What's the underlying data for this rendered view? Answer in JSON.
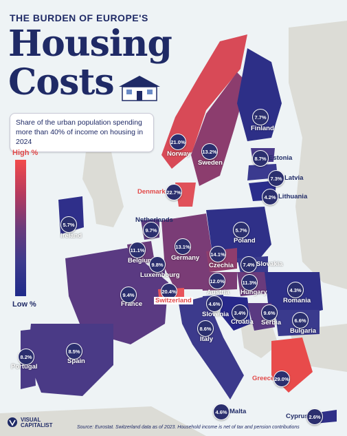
{
  "header": {
    "kicker": "THE BURDEN OF EUROPE'S",
    "title_line1": "Housing",
    "title_line2": "Costs"
  },
  "subtitle": "Share of the urban population spending more than 40% of income on housing in 2024",
  "legend": {
    "high": "High %",
    "low": "Low %",
    "colors": [
      "#f24b4b",
      "#b63a5e",
      "#6b3b7c",
      "#3c3a8c",
      "#1f2a8a"
    ]
  },
  "countries": [
    {
      "name": "Norway",
      "value": "21.0%"
    },
    {
      "name": "Sweden",
      "value": "13.2%"
    },
    {
      "name": "Finland",
      "value": "7.7%"
    },
    {
      "name": "Estonia",
      "value": "8.7%"
    },
    {
      "name": "Latvia",
      "value": "7.3%"
    },
    {
      "name": "Lithuania",
      "value": "4.2%"
    },
    {
      "name": "Denmark",
      "value": "22.7%"
    },
    {
      "name": "Ireland",
      "value": "5.7%"
    },
    {
      "name": "Netherlands",
      "value": "9.7%"
    },
    {
      "name": "Poland",
      "value": "5.7%"
    },
    {
      "name": "Belgium",
      "value": "11.1%"
    },
    {
      "name": "Germany",
      "value": "13.1%"
    },
    {
      "name": "Czechia",
      "value": "14.1%"
    },
    {
      "name": "Luxembourg",
      "value": "9.8%"
    },
    {
      "name": "Slovakia",
      "value": "7.4%"
    },
    {
      "name": "France",
      "value": "9.4%"
    },
    {
      "name": "Austria",
      "value": "12.0%"
    },
    {
      "name": "Hungary",
      "value": "11.3%"
    },
    {
      "name": "Switzerland",
      "value": "20.4%"
    },
    {
      "name": "Slovenia",
      "value": "4.6%"
    },
    {
      "name": "Romania",
      "value": "4.3%"
    },
    {
      "name": "Croatia",
      "value": "3.4%"
    },
    {
      "name": "Serbia",
      "value": "9.6%"
    },
    {
      "name": "Bulgaria",
      "value": "6.6%"
    },
    {
      "name": "Italy",
      "value": "8.6%"
    },
    {
      "name": "Spain",
      "value": "8.5%"
    },
    {
      "name": "Portugal",
      "value": "8.2%"
    },
    {
      "name": "Greece",
      "value": "29.0%"
    },
    {
      "name": "Malta",
      "value": "4.6%"
    },
    {
      "name": "Cyprus",
      "value": "2.6%"
    }
  ],
  "source": "Source: Eurostat. Switzerland data as of 2023. Household income is net of tax and pension contributions",
  "brand": "VISUAL CAPITALIST"
}
